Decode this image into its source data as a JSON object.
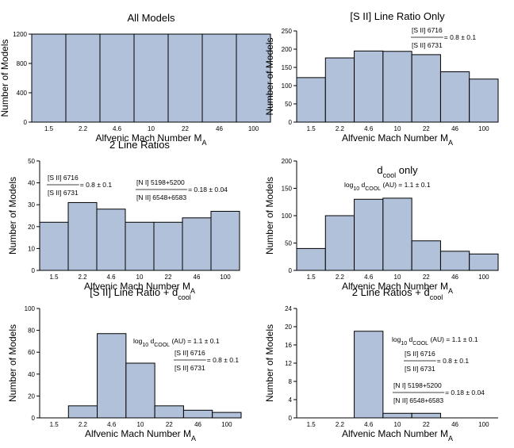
{
  "chart_data": [
    {
      "type": "bar",
      "title": "All Models",
      "xlabel": "Alfvenic Mach Number",
      "xlabel_sub": "A",
      "ylabel": "Number of Models",
      "categories": [
        "1.5",
        "2.2",
        "4.6",
        "10",
        "22",
        "46",
        "100"
      ],
      "values": [
        1200,
        1200,
        1200,
        1200,
        1200,
        1200,
        1200
      ],
      "ylim": [
        0,
        1200
      ],
      "yticks": [
        0,
        400,
        800,
        1200
      ]
    },
    {
      "type": "bar",
      "title": "[S II] Line Ratio Only",
      "xlabel": "Alfvenic Mach Number",
      "xlabel_sub": "A",
      "ylabel": "Number of Models",
      "categories": [
        "1.5",
        "2.2",
        "4.6",
        "10",
        "22",
        "46",
        "100"
      ],
      "values": [
        122,
        176,
        195,
        194,
        185,
        138,
        118
      ],
      "ylim": [
        0,
        250
      ],
      "yticks": [
        0,
        50,
        100,
        150,
        200,
        250
      ],
      "annotations": [
        {
          "num": "[S II] 6716",
          "den": "[S II] 6731",
          "value": "= 0.8 ± 0.1"
        }
      ]
    },
    {
      "type": "bar",
      "title": "2 Line Ratios",
      "xlabel": "Alfvenic Mach Number",
      "xlabel_sub": "A",
      "ylabel": "Number of Models",
      "categories": [
        "1.5",
        "2.2",
        "4.6",
        "10",
        "22",
        "46",
        "100"
      ],
      "values": [
        22,
        31,
        28,
        22,
        22,
        24,
        27
      ],
      "ylim": [
        0,
        50
      ],
      "yticks": [
        0,
        10,
        20,
        30,
        40,
        50
      ],
      "annotations": [
        {
          "num": "[S II] 6716",
          "den": "[S II] 6731",
          "value": "= 0.8 ± 0.1"
        },
        {
          "num": "[N I] 5198+5200",
          "den": "[N II] 6548+6583",
          "value": "= 0.18 ± 0.04"
        }
      ]
    },
    {
      "type": "bar",
      "title": "d",
      "title_sub": "cool",
      "title_suffix": " only",
      "xlabel": "Alfvenic Mach Number",
      "xlabel_sub": "A",
      "ylabel": "Number of Models",
      "categories": [
        "1.5",
        "2.2",
        "4.6",
        "10",
        "22",
        "46",
        "100"
      ],
      "values": [
        40,
        100,
        130,
        132,
        54,
        35,
        30
      ],
      "ylim": [
        0,
        200
      ],
      "yticks": [
        0,
        50,
        100,
        150,
        200
      ],
      "log_annotation": {
        "prefix": "log",
        "prefix_sub": "10",
        "mid": " d",
        "mid_sub": "COOL",
        "suffix": " (AU) = 1.1 ± 0.1"
      }
    },
    {
      "type": "bar",
      "title": "[S II] Line Ratio + d",
      "title_sub": "cool",
      "title_suffix": "",
      "xlabel": "Alfvenic Mach Number",
      "xlabel_sub": "A",
      "ylabel": "Number of Models",
      "categories": [
        "1.5",
        "2.2",
        "4.6",
        "10",
        "22",
        "46",
        "100"
      ],
      "values": [
        0,
        11,
        77,
        50,
        11,
        7,
        5
      ],
      "ylim": [
        0,
        100
      ],
      "yticks": [
        0,
        20,
        40,
        60,
        80,
        100
      ],
      "log_annotation": {
        "prefix": "log",
        "prefix_sub": "10",
        "mid": " d",
        "mid_sub": "COOL",
        "suffix": " (AU) = 1.1 ± 0.1"
      },
      "annotations": [
        {
          "num": "[S II] 6716",
          "den": "[S II] 6731",
          "value": "= 0.8 ± 0.1"
        }
      ]
    },
    {
      "type": "bar",
      "title": "2 Line Ratios + d",
      "title_sub": "cool",
      "title_suffix": "",
      "xlabel": "Alfvenic Mach Number",
      "xlabel_sub": "A",
      "ylabel": "Number of Models",
      "categories": [
        "1.5",
        "2.2",
        "4.6",
        "10",
        "22",
        "46",
        "100"
      ],
      "values": [
        0,
        0,
        19,
        1,
        1,
        0,
        0
      ],
      "ylim": [
        0,
        24
      ],
      "yticks": [
        0,
        4,
        8,
        12,
        16,
        20,
        24
      ],
      "log_annotation": {
        "prefix": "log",
        "prefix_sub": "10",
        "mid": " d",
        "mid_sub": "COOL",
        "suffix": " (AU) = 1.1 ± 0.1"
      },
      "annotations": [
        {
          "num": "[S II] 6716",
          "den": "[S II] 6731",
          "value": "= 0.8 ± 0.1"
        },
        {
          "num": "[N I] 5198+5200",
          "den": "[N II] 6548+6583",
          "value": "= 0.18 ± 0.04"
        }
      ]
    }
  ]
}
